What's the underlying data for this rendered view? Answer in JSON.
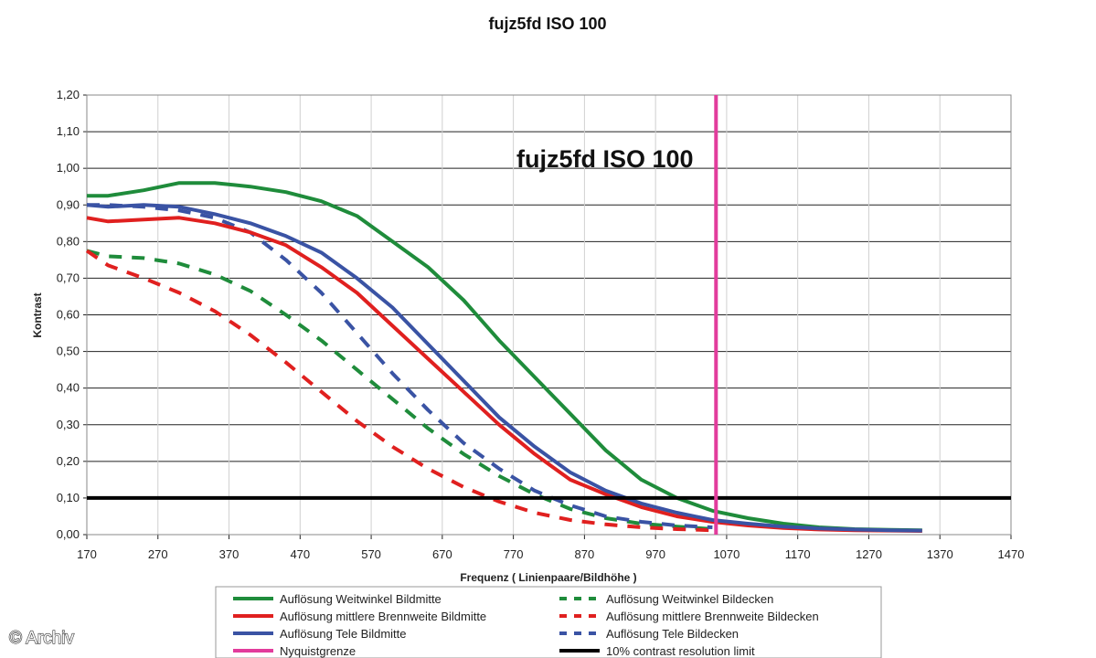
{
  "chart_data": {
    "type": "line",
    "title": "fujz5fd ISO 100",
    "inner_title": "fujz5fd ISO 100",
    "xlabel": "Frequenz ( Linienpaare/Bildhöhe )",
    "ylabel": "Kontrast",
    "xlim": [
      170,
      1470
    ],
    "ylim": [
      0,
      1.2
    ],
    "x_ticks": [
      "170",
      "270",
      "370",
      "470",
      "570",
      "670",
      "770",
      "870",
      "970",
      "1070",
      "1170",
      "1270",
      "1370",
      "1470"
    ],
    "y_ticks": [
      "0,00",
      "0,10",
      "0,20",
      "0,30",
      "0,40",
      "0,50",
      "0,60",
      "0,70",
      "0,80",
      "0,90",
      "1,00",
      "1,10",
      "1,20"
    ],
    "grid": "horizontal",
    "legend_position": "bottom",
    "series": [
      {
        "name": "Auflösung Weitwinkel Bildmitte",
        "color": "#1f8c3b",
        "style": "solid",
        "x": [
          170,
          200,
          250,
          300,
          350,
          400,
          450,
          500,
          550,
          600,
          650,
          700,
          750,
          800,
          850,
          900,
          950,
          1000,
          1050,
          1100,
          1150,
          1200,
          1250,
          1300,
          1345
        ],
        "y": [
          0.925,
          0.925,
          0.94,
          0.96,
          0.96,
          0.95,
          0.935,
          0.91,
          0.87,
          0.8,
          0.73,
          0.64,
          0.53,
          0.43,
          0.33,
          0.23,
          0.15,
          0.1,
          0.065,
          0.045,
          0.03,
          0.02,
          0.015,
          0.013,
          0.012
        ]
      },
      {
        "name": "Auflösung mittlere Brennweite Bildmitte",
        "color": "#e0201f",
        "style": "solid",
        "x": [
          170,
          200,
          250,
          300,
          350,
          400,
          450,
          500,
          550,
          600,
          650,
          700,
          750,
          800,
          850,
          900,
          950,
          1000,
          1050,
          1100,
          1150,
          1200,
          1250,
          1300,
          1345
        ],
        "y": [
          0.865,
          0.855,
          0.86,
          0.865,
          0.85,
          0.825,
          0.79,
          0.73,
          0.66,
          0.57,
          0.48,
          0.39,
          0.3,
          0.22,
          0.15,
          0.11,
          0.075,
          0.05,
          0.035,
          0.025,
          0.018,
          0.014,
          0.012,
          0.011,
          0.01
        ]
      },
      {
        "name": "Auflösung Tele Bildmitte",
        "color": "#3a53a4",
        "style": "solid",
        "x": [
          170,
          200,
          250,
          300,
          350,
          400,
          450,
          500,
          550,
          600,
          650,
          700,
          750,
          800,
          850,
          900,
          950,
          1000,
          1050,
          1100,
          1150,
          1200,
          1250,
          1300,
          1345
        ],
        "y": [
          0.9,
          0.895,
          0.9,
          0.895,
          0.875,
          0.85,
          0.815,
          0.77,
          0.7,
          0.62,
          0.52,
          0.42,
          0.32,
          0.24,
          0.17,
          0.12,
          0.085,
          0.06,
          0.04,
          0.03,
          0.022,
          0.017,
          0.014,
          0.012,
          0.011
        ]
      },
      {
        "name": "Nyquistgrenze",
        "color": "#e23c9c",
        "style": "solid",
        "x": [
          1055,
          1055
        ],
        "y": [
          0,
          1.2
        ]
      },
      {
        "name": "Auflösung Weitwinkel Bildecken",
        "color": "#1f8c3b",
        "style": "dashed",
        "x": [
          170,
          200,
          250,
          300,
          350,
          400,
          450,
          500,
          550,
          600,
          650,
          700,
          750,
          800,
          850,
          900,
          950,
          1000,
          1050
        ],
        "y": [
          0.775,
          0.76,
          0.755,
          0.74,
          0.71,
          0.665,
          0.6,
          0.53,
          0.45,
          0.37,
          0.29,
          0.22,
          0.16,
          0.11,
          0.07,
          0.045,
          0.03,
          0.022,
          0.015
        ]
      },
      {
        "name": "Auflösung mittlere Brennweite Bildecken",
        "color": "#e0201f",
        "style": "dashed",
        "x": [
          170,
          200,
          250,
          300,
          350,
          400,
          450,
          500,
          550,
          600,
          650,
          700,
          750,
          800,
          850,
          900,
          950,
          1000,
          1050
        ],
        "y": [
          0.775,
          0.735,
          0.7,
          0.66,
          0.61,
          0.545,
          0.47,
          0.39,
          0.31,
          0.24,
          0.18,
          0.13,
          0.09,
          0.06,
          0.04,
          0.028,
          0.02,
          0.015,
          0.012
        ]
      },
      {
        "name": "Auflösung Tele Bildecken",
        "color": "#3a53a4",
        "style": "dashed",
        "x": [
          170,
          200,
          250,
          300,
          350,
          400,
          450,
          500,
          550,
          600,
          650,
          700,
          750,
          800,
          850,
          900,
          950,
          1000,
          1050
        ],
        "y": [
          0.9,
          0.9,
          0.895,
          0.885,
          0.865,
          0.825,
          0.75,
          0.66,
          0.55,
          0.44,
          0.34,
          0.25,
          0.18,
          0.12,
          0.08,
          0.05,
          0.035,
          0.025,
          0.02
        ]
      },
      {
        "name": "10% contrast resolution limit",
        "color": "#000000",
        "style": "solid",
        "x": [
          170,
          1470
        ],
        "y": [
          0.1,
          0.1
        ]
      }
    ]
  },
  "watermark": "© Archiv"
}
